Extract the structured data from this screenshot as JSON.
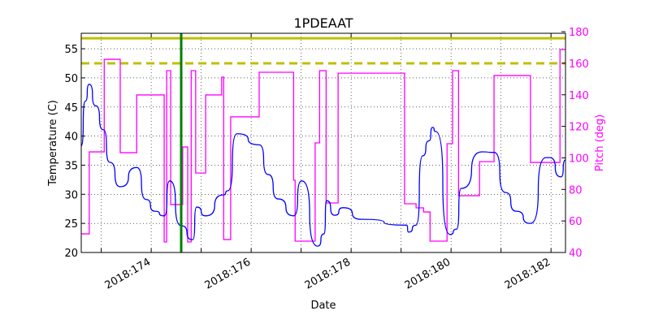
{
  "chart_data": {
    "type": "line",
    "title": "1PDEAAT",
    "xlabel": "Date",
    "ylabel": "Temperature (C)",
    "y2label": "Pitch (deg)",
    "xlim": [
      172.6,
      182.29
    ],
    "ylim": [
      20,
      57.66
    ],
    "y2lim": [
      40,
      179
    ],
    "grid": true,
    "xticks": [
      {
        "value": 174,
        "label": "2018:174"
      },
      {
        "value": 176,
        "label": "2018:176"
      },
      {
        "value": 178,
        "label": "2018:178"
      },
      {
        "value": 180,
        "label": "2018:180"
      },
      {
        "value": 182,
        "label": "2018:182"
      }
    ],
    "xminor": [
      173,
      175,
      177,
      179,
      181
    ],
    "yticks": [
      20,
      25,
      30,
      35,
      40,
      45,
      50,
      55
    ],
    "y2ticks": [
      40,
      60,
      80,
      100,
      120,
      140,
      160,
      180
    ],
    "colors": {
      "temperature": "#0000ff",
      "pitch": "#ff00ff",
      "limit": "#bfbf00",
      "marker": "#008000",
      "pitch_axis": "#ff00ff"
    },
    "limits": [
      {
        "name": "planning-limit",
        "value": 56.8,
        "style": "solid"
      },
      {
        "name": "caution-limit",
        "value": 52.5,
        "style": "dashed"
      }
    ],
    "vline": {
      "name": "now-marker",
      "value": 174.6
    },
    "series": [
      {
        "name": "temperature",
        "axis": "left",
        "points": [
          [
            172.6,
            38.3
          ],
          [
            172.68,
            46.0
          ],
          [
            172.76,
            48.9
          ],
          [
            172.89,
            45.2
          ],
          [
            173.04,
            41.1
          ],
          [
            173.17,
            35.5
          ],
          [
            173.38,
            31.3
          ],
          [
            173.71,
            34.6
          ],
          [
            173.9,
            29.1
          ],
          [
            174.07,
            27.1
          ],
          [
            174.26,
            26.3
          ],
          [
            174.37,
            32.3
          ],
          [
            174.6,
            24.6
          ],
          [
            174.83,
            22.2
          ],
          [
            174.91,
            27.8
          ],
          [
            175.09,
            26.3
          ],
          [
            175.45,
            29.9
          ],
          [
            175.53,
            30.6
          ],
          [
            175.72,
            40.4
          ],
          [
            176.16,
            38.5
          ],
          [
            176.34,
            33.4
          ],
          [
            176.54,
            29.2
          ],
          [
            176.85,
            26.3
          ],
          [
            177.01,
            32.3
          ],
          [
            177.33,
            21.1
          ],
          [
            177.46,
            23.2
          ],
          [
            177.51,
            28.9
          ],
          [
            177.67,
            26.4
          ],
          [
            177.84,
            27.7
          ],
          [
            178.21,
            25.7
          ],
          [
            179.11,
            24.7
          ],
          [
            179.15,
            23.5
          ],
          [
            179.3,
            24.7
          ],
          [
            179.43,
            36.6
          ],
          [
            179.56,
            39.2
          ],
          [
            179.63,
            41.5
          ],
          [
            179.69,
            40.8
          ],
          [
            179.98,
            23.1
          ],
          [
            180.11,
            24.0
          ],
          [
            180.2,
            31.0
          ],
          [
            180.62,
            37.3
          ],
          [
            180.86,
            37.2
          ],
          [
            181.09,
            30.3
          ],
          [
            181.3,
            27.1
          ],
          [
            181.59,
            25.0
          ],
          [
            181.9,
            36.3
          ],
          [
            181.97,
            36.3
          ],
          [
            182.2,
            33.0
          ],
          [
            182.29,
            35.9
          ]
        ]
      },
      {
        "name": "pitch",
        "axis": "right",
        "step": true,
        "points": [
          [
            172.6,
            51.8
          ],
          [
            172.76,
            103.8
          ],
          [
            173.06,
            162.5
          ],
          [
            173.38,
            103.3
          ],
          [
            173.71,
            139.9
          ],
          [
            174.26,
            46.7
          ],
          [
            174.31,
            155.3
          ],
          [
            174.39,
            70.4
          ],
          [
            174.63,
            106.9
          ],
          [
            174.73,
            46.7
          ],
          [
            174.8,
            155.3
          ],
          [
            174.89,
            90.4
          ],
          [
            175.09,
            139.9
          ],
          [
            175.41,
            151.2
          ],
          [
            175.45,
            48.2
          ],
          [
            175.59,
            126.0
          ],
          [
            176.16,
            154.3
          ],
          [
            176.85,
            85.8
          ],
          [
            176.88,
            47.2
          ],
          [
            177.28,
            109.5
          ],
          [
            177.37,
            155.3
          ],
          [
            177.5,
            71.4
          ],
          [
            177.74,
            153.7
          ],
          [
            179.07,
            70.9
          ],
          [
            179.3,
            68.3
          ],
          [
            179.45,
            65.7
          ],
          [
            179.58,
            47.2
          ],
          [
            179.92,
            109.0
          ],
          [
            180.03,
            155.3
          ],
          [
            180.15,
            76.0
          ],
          [
            180.57,
            97.6
          ],
          [
            180.86,
            152.2
          ],
          [
            181.59,
            97.1
          ],
          [
            182.18,
            168.7
          ],
          [
            182.29,
            168.7
          ]
        ]
      }
    ]
  }
}
